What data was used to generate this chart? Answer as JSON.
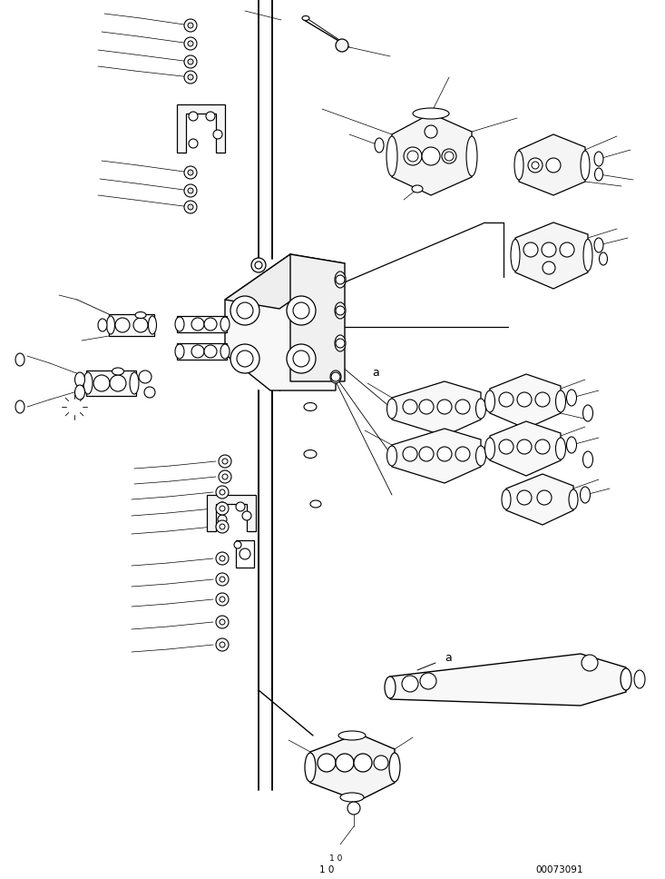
{
  "figure_width": 7.33,
  "figure_height": 9.68,
  "dpi": 100,
  "background_color": "#ffffff",
  "doc_number": "00073091",
  "label_a1": "a",
  "label_a2": "a",
  "line_color": "#000000",
  "page_num": "1 0"
}
